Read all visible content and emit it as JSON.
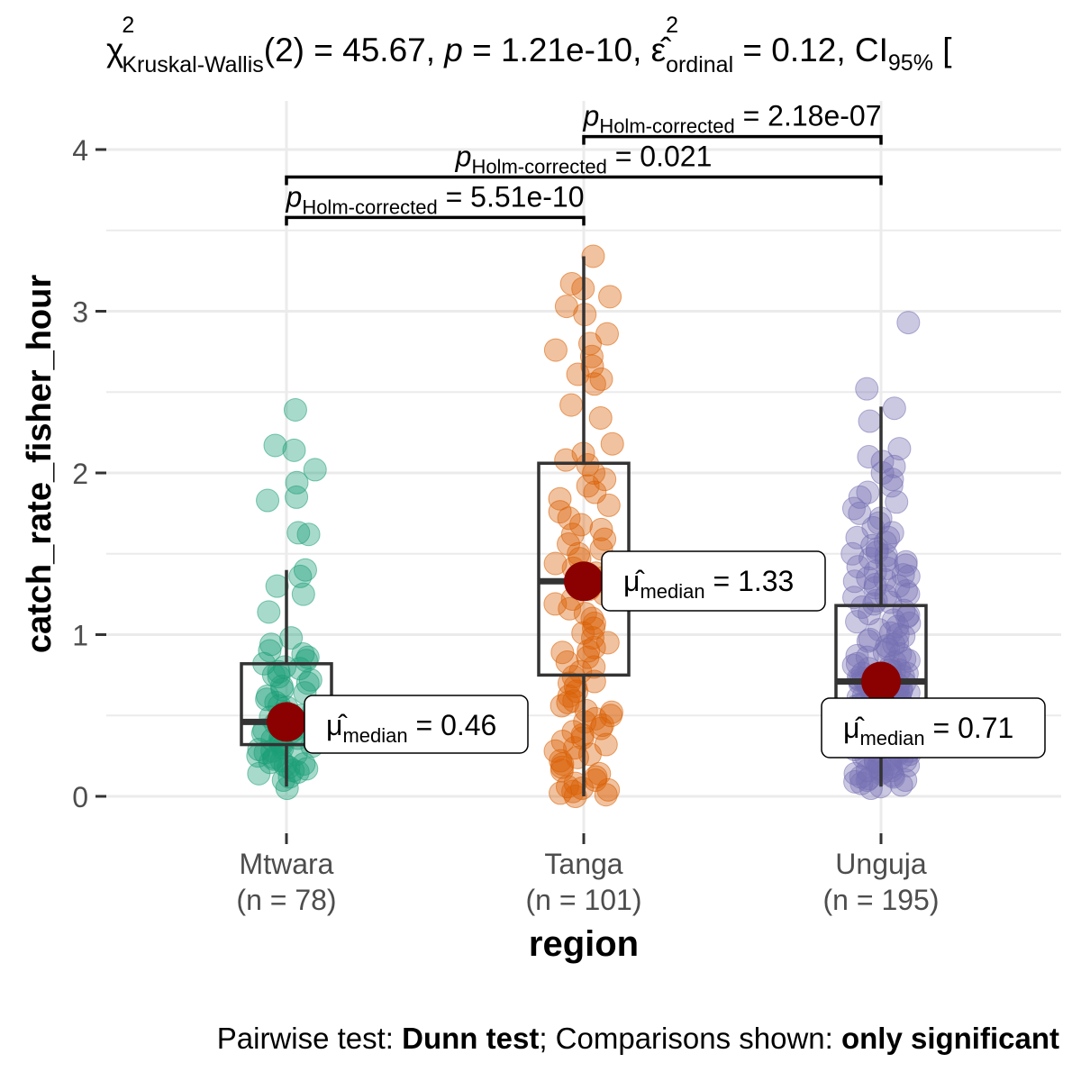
{
  "chart_data": {
    "type": "box-violin-scatter",
    "title": {
      "stat_symbol": "χ",
      "stat_sup": "2",
      "stat_sub": "Kruskal-Wallis",
      "stat_main": "(2) = 45.67, ",
      "p_symbol": "p",
      "p_text": " = 1.21e-10, ",
      "effect_symbol": "ε̂",
      "effect_sup": "2",
      "effect_sub": "ordinal",
      "effect_text": " = 0.12, CI",
      "ci_sub": "95%",
      "ci_text": " ["
    },
    "xlabel": "region",
    "ylabel": "catch_rate_fisher_hour",
    "ylim": [
      -0.25,
      4.35
    ],
    "yticks": [
      0,
      1,
      2,
      3,
      4
    ],
    "grid": true,
    "caption": {
      "prefix": "Pairwise test: ",
      "test": "Dunn test",
      "middle": "; Comparisons shown: ",
      "shown": "only significant"
    },
    "groups": [
      {
        "name": "Mtwara",
        "n_label": "(n = 78)",
        "color": "#1B9E77",
        "box": {
          "whisker_low": 0.06,
          "q1": 0.32,
          "median": 0.46,
          "q3": 0.82,
          "whisker_high": 1.4
        },
        "median_marker": 0.46,
        "median_label": {
          "symbol": "μ̂",
          "sub": "median",
          "text": " = 0.46"
        },
        "points": [
          2.39,
          2.17,
          2.14,
          2.02,
          1.94,
          1.85,
          1.83,
          1.62,
          1.63,
          1.4,
          1.36,
          1.3,
          1.25,
          1.14,
          0.98,
          0.94,
          0.9,
          0.88,
          0.86,
          0.84,
          0.82,
          0.8,
          0.79,
          0.77,
          0.75,
          0.74,
          0.72,
          0.7,
          0.68,
          0.66,
          0.64,
          0.62,
          0.6,
          0.58,
          0.56,
          0.55,
          0.53,
          0.52,
          0.5,
          0.49,
          0.48,
          0.47,
          0.46,
          0.45,
          0.44,
          0.43,
          0.42,
          0.41,
          0.4,
          0.39,
          0.38,
          0.37,
          0.36,
          0.35,
          0.34,
          0.33,
          0.32,
          0.31,
          0.3,
          0.29,
          0.28,
          0.27,
          0.26,
          0.25,
          0.24,
          0.23,
          0.22,
          0.21,
          0.2,
          0.19,
          0.18,
          0.17,
          0.16,
          0.15,
          0.14,
          0.12,
          0.1,
          0.05
        ]
      },
      {
        "name": "Tanga",
        "n_label": "(n = 101)",
        "color": "#D95F02",
        "box": {
          "whisker_low": 0.0,
          "q1": 0.75,
          "median": 1.33,
          "q3": 2.06,
          "whisker_high": 3.34
        },
        "median_marker": 1.33,
        "median_label": {
          "symbol": "μ̂",
          "sub": "median",
          "text": " = 1.33"
        },
        "points": [
          3.34,
          3.17,
          3.14,
          3.09,
          3.03,
          2.98,
          2.86,
          2.8,
          2.76,
          2.72,
          2.66,
          2.61,
          2.58,
          2.55,
          2.42,
          2.34,
          2.18,
          2.12,
          2.08,
          2.05,
          2.0,
          1.96,
          1.92,
          1.88,
          1.84,
          1.8,
          1.76,
          1.72,
          1.68,
          1.65,
          1.62,
          1.59,
          1.56,
          1.53,
          1.5,
          1.47,
          1.44,
          1.41,
          1.38,
          1.35,
          1.33,
          1.31,
          1.28,
          1.25,
          1.22,
          1.19,
          1.16,
          1.13,
          1.1,
          1.07,
          1.04,
          1.01,
          0.98,
          0.95,
          0.92,
          0.89,
          0.86,
          0.83,
          0.8,
          0.77,
          0.74,
          0.71,
          0.68,
          0.65,
          0.62,
          0.59,
          0.56,
          0.53,
          0.5,
          0.48,
          0.46,
          0.44,
          0.42,
          0.4,
          0.38,
          0.36,
          0.34,
          0.32,
          0.3,
          0.28,
          0.26,
          0.24,
          0.22,
          0.2,
          0.18,
          0.16,
          0.14,
          0.12,
          0.1,
          0.08,
          0.06,
          0.05,
          0.04,
          0.03,
          0.02,
          0.01,
          0.0,
          0.52,
          0.58,
          0.7,
          0.9
        ]
      },
      {
        "name": "Unguja",
        "n_label": "(n = 195)",
        "color": "#7570B3",
        "box": {
          "whisker_low": 0.06,
          "q1": 0.37,
          "median": 0.71,
          "q3": 1.18,
          "whisker_high": 2.41
        },
        "median_marker": 0.71,
        "median_label": {
          "symbol": "μ̂",
          "sub": "median",
          "text": " = 0.71"
        },
        "points": [
          2.93,
          2.52,
          2.4,
          2.32,
          2.15,
          2.1,
          2.07,
          2.04,
          2.0,
          1.96,
          1.92,
          1.88,
          1.85,
          1.82,
          1.78,
          1.75,
          1.72,
          1.69,
          1.66,
          1.63,
          1.6,
          1.57,
          1.55,
          1.53,
          1.51,
          1.49,
          1.47,
          1.45,
          1.43,
          1.41,
          1.39,
          1.37,
          1.35,
          1.33,
          1.31,
          1.29,
          1.27,
          1.25,
          1.23,
          1.21,
          1.19,
          1.17,
          1.15,
          1.13,
          1.11,
          1.09,
          1.07,
          1.05,
          1.03,
          1.01,
          0.99,
          0.97,
          0.95,
          0.93,
          0.91,
          0.89,
          0.87,
          0.85,
          0.83,
          0.81,
          0.8,
          0.79,
          0.78,
          0.77,
          0.76,
          0.75,
          0.74,
          0.73,
          0.72,
          0.71,
          0.7,
          0.69,
          0.68,
          0.67,
          0.66,
          0.65,
          0.64,
          0.63,
          0.62,
          0.61,
          0.6,
          0.59,
          0.58,
          0.57,
          0.56,
          0.55,
          0.54,
          0.53,
          0.52,
          0.51,
          0.5,
          0.49,
          0.48,
          0.47,
          0.46,
          0.45,
          0.44,
          0.43,
          0.42,
          0.41,
          0.4,
          0.39,
          0.38,
          0.37,
          0.36,
          0.35,
          0.34,
          0.33,
          0.32,
          0.31,
          0.3,
          0.29,
          0.28,
          0.27,
          0.26,
          0.25,
          0.24,
          0.23,
          0.22,
          0.21,
          0.2,
          0.19,
          0.18,
          0.17,
          0.16,
          0.15,
          0.14,
          0.13,
          0.12,
          0.11,
          0.1,
          0.09,
          0.08,
          0.07,
          0.06,
          0.05,
          1.5,
          1.42,
          1.36,
          1.3,
          1.24,
          1.12,
          1.0,
          0.94,
          0.88,
          0.84,
          0.78,
          0.74,
          0.7,
          0.66,
          0.62,
          0.58,
          0.54,
          0.5,
          0.46,
          0.42,
          0.38,
          0.34,
          0.3,
          0.26,
          0.22,
          0.18,
          0.14,
          0.1,
          0.72,
          0.68,
          0.64,
          0.6,
          0.56,
          0.52,
          0.48,
          0.44,
          0.4,
          0.36,
          0.32,
          0.28,
          0.24,
          0.2,
          0.16,
          0.12,
          1.6,
          1.46,
          1.34,
          1.2,
          1.08,
          0.96,
          0.86,
          0.82,
          0.76,
          0.73,
          0.69,
          0.65,
          0.61,
          0.57,
          0.53
        ]
      }
    ],
    "comparisons": [
      {
        "groups": [
          "Mtwara",
          "Tanga"
        ],
        "y": 3.58,
        "label": {
          "symbol": "p",
          "sub": "Holm-corrected",
          "text": " = 5.51e-10"
        }
      },
      {
        "groups": [
          "Mtwara",
          "Unguja"
        ],
        "y": 3.83,
        "label": {
          "symbol": "p",
          "sub": "Holm-corrected",
          "text": " = 0.021"
        }
      },
      {
        "groups": [
          "Tanga",
          "Unguja"
        ],
        "y": 4.08,
        "label": {
          "symbol": "p",
          "sub": "Holm-corrected",
          "text": " = 2.18e-07"
        }
      }
    ],
    "median_marker_color": "#8B0000"
  }
}
